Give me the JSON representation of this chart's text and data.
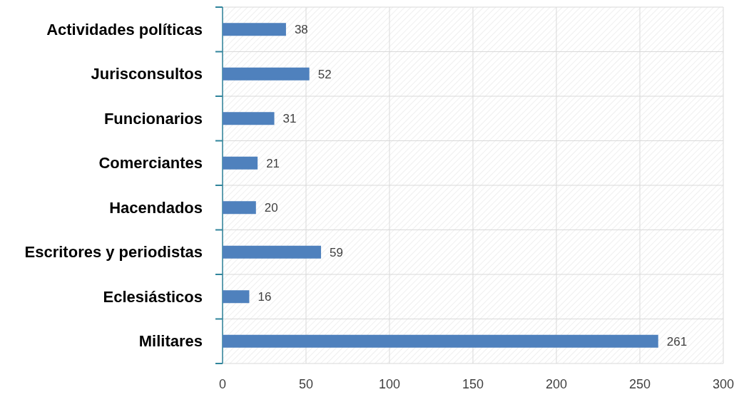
{
  "chart_data": {
    "type": "bar",
    "orientation": "horizontal",
    "categories": [
      "Actividades políticas",
      "Jurisconsultos",
      "Funcionarios",
      "Comerciantes",
      "Hacendados",
      "Escritores y periodistas",
      "Eclesiásticos",
      "Militares"
    ],
    "values": [
      38,
      52,
      31,
      21,
      20,
      59,
      16,
      261
    ],
    "color": "#4f81bd",
    "xlim": [
      0,
      300
    ],
    "xticks": [
      0,
      50,
      100,
      150,
      200,
      250,
      300
    ],
    "grid": true,
    "data_labels": true
  }
}
